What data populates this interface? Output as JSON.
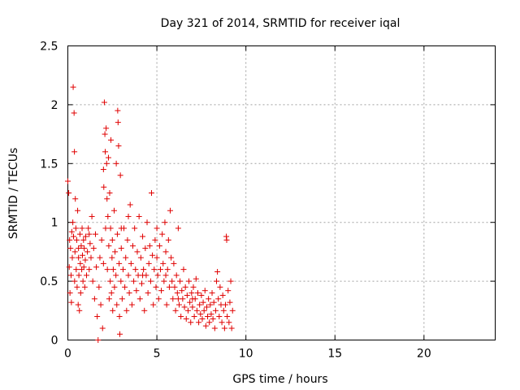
{
  "chart_data": {
    "type": "scatter",
    "title": "Day 321 of 2014, SRMTID for receiver iqal",
    "xlabel": "GPS time / hours",
    "ylabel": "SRMTID / TECUs",
    "xlim": [
      0,
      24
    ],
    "ylim": [
      0,
      2.5
    ],
    "xticks": [
      0,
      5,
      10,
      15,
      20
    ],
    "xtick_labels": [
      "0",
      "5",
      "10",
      "15",
      "20"
    ],
    "yticks": [
      0,
      0.5,
      1,
      1.5,
      2,
      2.5
    ],
    "ytick_labels": [
      "0",
      "0.5",
      "1",
      "1.5",
      "2",
      "2.5"
    ],
    "grid": true,
    "marker": "+",
    "color": "#e00000",
    "series": [
      {
        "name": "SRMTID",
        "points": [
          [
            0.0,
            1.35
          ],
          [
            0.05,
            1.25
          ],
          [
            0.08,
            0.62
          ],
          [
            0.1,
            0.85
          ],
          [
            0.12,
            0.4
          ],
          [
            0.15,
            0.78
          ],
          [
            0.18,
            0.55
          ],
          [
            0.2,
            0.32
          ],
          [
            0.22,
            0.92
          ],
          [
            0.25,
            0.7
          ],
          [
            0.28,
            1.0
          ],
          [
            0.3,
            2.15
          ],
          [
            0.32,
            0.88
          ],
          [
            0.35,
            1.93
          ],
          [
            0.37,
            1.6
          ],
          [
            0.38,
            0.5
          ],
          [
            0.4,
            0.75
          ],
          [
            0.42,
            1.2
          ],
          [
            0.45,
            0.95
          ],
          [
            0.47,
            0.6
          ],
          [
            0.5,
            0.85
          ],
          [
            0.52,
            0.45
          ],
          [
            0.55,
            1.1
          ],
          [
            0.58,
            0.3
          ],
          [
            0.6,
            0.7
          ],
          [
            0.62,
            0.55
          ],
          [
            0.65,
            0.25
          ],
          [
            0.68,
            0.9
          ],
          [
            0.7,
            0.65
          ],
          [
            0.72,
            0.4
          ],
          [
            0.75,
            0.8
          ],
          [
            0.78,
            0.6
          ],
          [
            0.8,
            0.95
          ],
          [
            0.82,
            0.72
          ],
          [
            0.85,
            0.5
          ],
          [
            0.88,
            0.85
          ],
          [
            0.9,
            0.62
          ],
          [
            0.92,
            0.78
          ],
          [
            0.95,
            0.45
          ],
          [
            0.98,
            0.68
          ],
          [
            1.0,
            0.88
          ],
          [
            1.05,
            0.55
          ],
          [
            1.1,
            0.75
          ],
          [
            1.15,
            0.95
          ],
          [
            1.2,
            0.6
          ],
          [
            1.25,
            0.82
          ],
          [
            1.3,
            0.7
          ],
          [
            1.35,
            1.05
          ],
          [
            1.4,
            0.5
          ],
          [
            1.45,
            0.78
          ],
          [
            1.5,
            0.35
          ],
          [
            1.55,
            0.9
          ],
          [
            1.6,
            0.62
          ],
          [
            1.65,
            0.2
          ],
          [
            1.7,
            0.0
          ],
          [
            1.75,
            0.45
          ],
          [
            1.8,
            0.7
          ],
          [
            1.85,
            0.3
          ],
          [
            1.9,
            0.85
          ],
          [
            1.95,
            0.1
          ],
          [
            2.0,
            1.45
          ],
          [
            2.02,
            1.3
          ],
          [
            2.05,
            2.02
          ],
          [
            2.08,
            1.75
          ],
          [
            2.1,
            1.6
          ],
          [
            2.12,
            0.95
          ],
          [
            2.15,
            1.8
          ],
          [
            2.18,
            1.5
          ],
          [
            2.2,
            1.2
          ],
          [
            2.22,
            0.6
          ],
          [
            2.25,
            1.05
          ],
          [
            2.28,
            1.55
          ],
          [
            2.3,
            0.8
          ],
          [
            2.32,
            0.35
          ],
          [
            2.35,
            1.25
          ],
          [
            2.38,
            0.5
          ],
          [
            2.4,
            0.95
          ],
          [
            2.42,
            1.7
          ],
          [
            2.45,
            0.4
          ],
          [
            2.48,
            0.7
          ],
          [
            2.5,
            0.85
          ],
          [
            2.52,
            0.25
          ],
          [
            2.55,
            0.6
          ],
          [
            2.6,
            1.1
          ],
          [
            2.62,
            0.45
          ],
          [
            2.65,
            0.75
          ],
          [
            2.7,
            0.55
          ],
          [
            2.72,
            1.5
          ],
          [
            2.75,
            0.3
          ],
          [
            2.78,
            0.9
          ],
          [
            2.8,
            1.95
          ],
          [
            2.82,
            1.85
          ],
          [
            2.85,
            1.65
          ],
          [
            2.88,
            0.65
          ],
          [
            2.9,
            0.2
          ],
          [
            2.92,
            0.05
          ],
          [
            2.95,
            1.4
          ],
          [
            2.98,
            0.5
          ],
          [
            3.0,
            0.78
          ],
          [
            3.05,
            0.35
          ],
          [
            3.1,
            0.6
          ],
          [
            3.15,
            0.95
          ],
          [
            3.2,
            0.45
          ],
          [
            3.25,
            0.7
          ],
          [
            3.3,
            0.25
          ],
          [
            3.35,
            0.85
          ],
          [
            3.4,
            0.55
          ],
          [
            3.45,
            0.4
          ],
          [
            3.5,
            1.15
          ],
          [
            3.55,
            0.65
          ],
          [
            3.6,
            0.3
          ],
          [
            3.65,
            0.8
          ],
          [
            3.7,
            0.5
          ],
          [
            3.75,
            0.95
          ],
          [
            3.8,
            0.6
          ],
          [
            3.85,
            0.42
          ],
          [
            3.9,
            0.75
          ],
          [
            3.95,
            0.55
          ],
          [
            4.0,
            1.05
          ],
          [
            4.05,
            0.35
          ],
          [
            4.1,
            0.7
          ],
          [
            4.15,
            0.48
          ],
          [
            4.2,
            0.88
          ],
          [
            4.25,
            0.6
          ],
          [
            4.3,
            0.25
          ],
          [
            4.35,
            0.78
          ],
          [
            4.4,
            0.55
          ],
          [
            4.45,
            1.0
          ],
          [
            4.5,
            0.4
          ],
          [
            4.55,
            0.65
          ],
          [
            4.6,
            0.8
          ],
          [
            4.65,
            0.5
          ],
          [
            4.7,
            1.25
          ],
          [
            4.75,
            0.72
          ],
          [
            4.8,
            0.3
          ],
          [
            4.85,
            0.6
          ],
          [
            4.9,
            0.85
          ],
          [
            4.95,
            0.45
          ],
          [
            5.0,
            0.7
          ],
          [
            5.05,
            0.55
          ],
          [
            5.1,
            0.35
          ],
          [
            5.15,
            0.8
          ],
          [
            5.2,
            0.6
          ],
          [
            5.25,
            0.42
          ],
          [
            5.3,
            0.9
          ],
          [
            5.35,
            0.65
          ],
          [
            5.4,
            0.5
          ],
          [
            5.45,
            1.0
          ],
          [
            5.5,
            0.75
          ],
          [
            5.55,
            0.3
          ],
          [
            5.6,
            0.6
          ],
          [
            5.65,
            0.85
          ],
          [
            5.7,
            0.45
          ],
          [
            5.75,
            1.1
          ],
          [
            5.8,
            0.7
          ],
          [
            5.85,
            0.5
          ],
          [
            5.9,
            0.35
          ],
          [
            5.95,
            0.65
          ],
          [
            6.0,
            0.45
          ],
          [
            6.05,
            0.25
          ],
          [
            6.1,
            0.55
          ],
          [
            6.15,
            0.4
          ],
          [
            6.2,
            0.95
          ],
          [
            6.25,
            0.3
          ],
          [
            6.3,
            0.5
          ],
          [
            6.35,
            0.2
          ],
          [
            6.4,
            0.42
          ],
          [
            6.45,
            0.35
          ],
          [
            6.5,
            0.6
          ],
          [
            6.55,
            0.28
          ],
          [
            6.6,
            0.45
          ],
          [
            6.65,
            0.18
          ],
          [
            6.7,
            0.38
          ],
          [
            6.75,
            0.25
          ],
          [
            6.8,
            0.5
          ],
          [
            6.85,
            0.32
          ],
          [
            6.9,
            0.15
          ],
          [
            6.95,
            0.4
          ],
          [
            7.0,
            0.28
          ],
          [
            7.05,
            0.45
          ],
          [
            7.1,
            0.2
          ],
          [
            7.15,
            0.35
          ],
          [
            7.2,
            0.52
          ],
          [
            7.25,
            0.25
          ],
          [
            7.3,
            0.4
          ],
          [
            7.35,
            0.15
          ],
          [
            7.4,
            0.3
          ],
          [
            7.45,
            0.22
          ],
          [
            7.5,
            0.38
          ],
          [
            7.55,
            0.18
          ],
          [
            7.6,
            0.32
          ],
          [
            7.65,
            0.25
          ],
          [
            7.7,
            0.42
          ],
          [
            7.75,
            0.12
          ],
          [
            7.8,
            0.28
          ],
          [
            7.85,
            0.2
          ],
          [
            7.9,
            0.35
          ],
          [
            7.95,
            0.15
          ],
          [
            8.0,
            0.3
          ],
          [
            8.05,
            0.22
          ],
          [
            8.1,
            0.4
          ],
          [
            8.15,
            0.18
          ],
          [
            8.2,
            0.32
          ],
          [
            8.25,
            0.1
          ],
          [
            8.3,
            0.25
          ],
          [
            8.35,
            0.5
          ],
          [
            8.4,
            0.58
          ],
          [
            8.45,
            0.35
          ],
          [
            8.5,
            0.2
          ],
          [
            8.55,
            0.45
          ],
          [
            8.6,
            0.3
          ],
          [
            8.65,
            0.15
          ],
          [
            8.7,
            0.38
          ],
          [
            8.75,
            0.25
          ],
          [
            8.8,
            0.1
          ],
          [
            8.85,
            0.3
          ],
          [
            8.9,
            0.88
          ],
          [
            8.92,
            0.85
          ],
          [
            8.95,
            0.2
          ],
          [
            9.0,
            0.42
          ],
          [
            9.05,
            0.15
          ],
          [
            9.1,
            0.32
          ],
          [
            9.15,
            0.5
          ],
          [
            9.2,
            0.1
          ],
          [
            9.25,
            0.25
          ],
          [
            0.6,
            0.78
          ],
          [
            1.2,
            0.9
          ],
          [
            2.0,
            0.65
          ],
          [
            3.0,
            0.95
          ],
          [
            3.4,
            1.05
          ],
          [
            4.2,
            0.55
          ],
          [
            5.0,
            0.95
          ],
          [
            5.5,
            0.55
          ],
          [
            6.2,
            0.35
          ],
          [
            7.0,
            0.35
          ]
        ]
      }
    ]
  }
}
